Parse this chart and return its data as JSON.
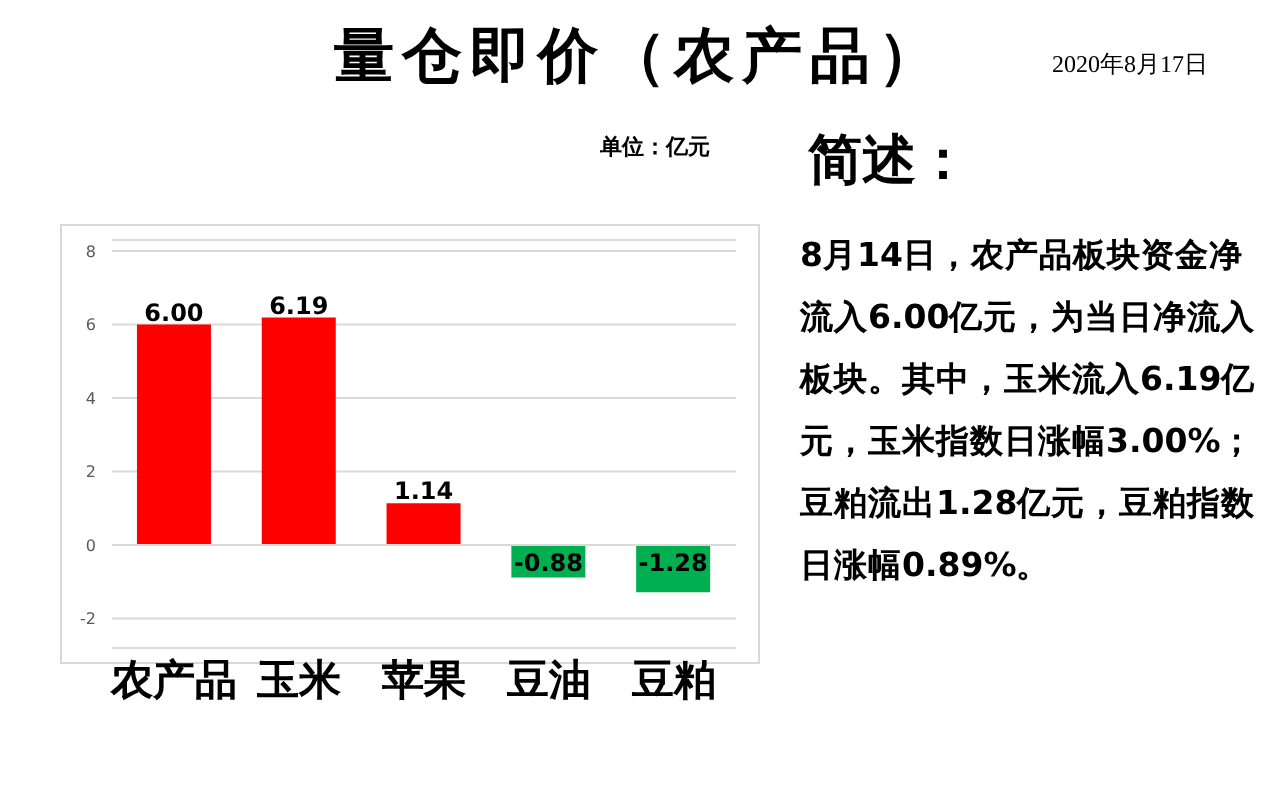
{
  "chart_data": {
    "type": "bar",
    "title": "量仓即价（农产品）",
    "subtitle": "2020年8月17日",
    "ylabel": "单位：亿元",
    "categories": [
      "农产品",
      "玉米",
      "苹果",
      "豆油",
      "豆粕"
    ],
    "values": [
      6.0,
      6.19,
      1.14,
      -0.88,
      -1.28
    ],
    "value_labels": [
      "6.00",
      "6.19",
      "1.14",
      "-0.88",
      "-1.28"
    ],
    "colors": [
      "#ff0000",
      "#ff0000",
      "#ff0000",
      "#00b050",
      "#00b050"
    ],
    "ylim": [
      -2.8,
      8.3
    ],
    "yticks": [
      -2,
      0,
      2,
      4,
      6,
      8
    ],
    "grid": "y",
    "annotations": [
      "简述：",
      "8月14日，农产品板块资金净流入6.00亿元，为当日净流入板块。其中，玉米流入6.19亿元，玉米指数日涨幅3.00%；豆粕流出1.28亿元，豆粕指数日涨幅0.89%。"
    ]
  }
}
